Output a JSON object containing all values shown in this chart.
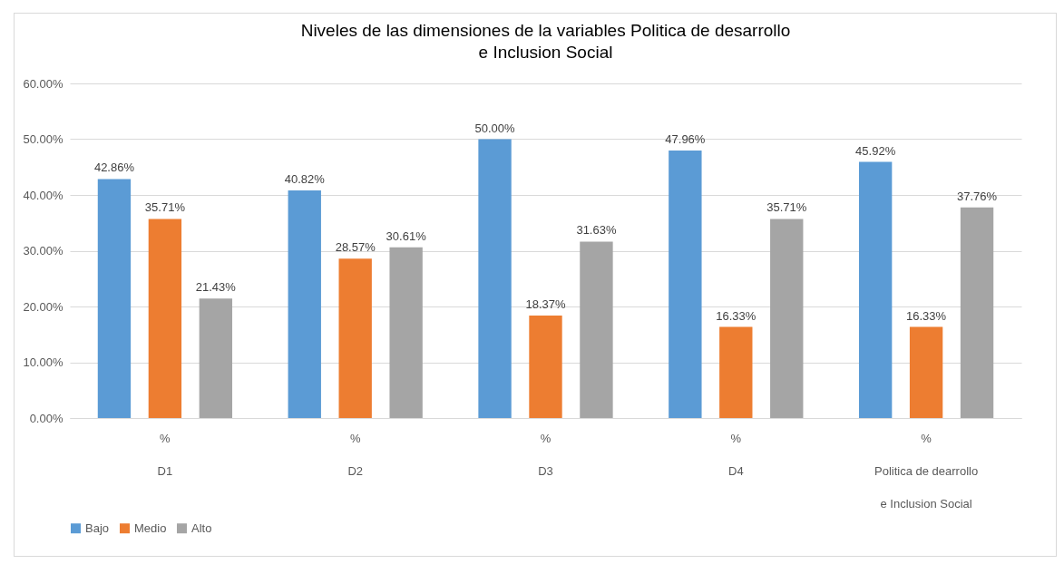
{
  "chart_data": {
    "type": "bar",
    "title": "Niveles de las dimensiones de la variables Politica de desarrollo\ne Inclusion Social",
    "categories": [
      "%\nD1",
      "%\nD2",
      "%\nD3",
      "%\nD4",
      "%\nPolitica de dearrollo\ne Inclusion Social"
    ],
    "series": [
      {
        "name": "Bajo",
        "color": "#5b9bd5",
        "values": [
          42.86,
          40.82,
          50.0,
          47.96,
          45.92
        ],
        "value_labels": [
          "42.86%",
          "40.82%",
          "50.00%",
          "47.96%",
          "45.92%"
        ]
      },
      {
        "name": "Medio",
        "color": "#ed7d31",
        "values": [
          35.71,
          28.57,
          18.37,
          16.33,
          16.33
        ],
        "value_labels": [
          "35.71%",
          "28.57%",
          "18.37%",
          "16.33%",
          "16.33%"
        ]
      },
      {
        "name": "Alto",
        "color": "#a5a5a5",
        "values": [
          21.43,
          30.61,
          31.63,
          35.71,
          37.76
        ],
        "value_labels": [
          "21.43%",
          "30.61%",
          "31.63%",
          "35.71%",
          "37.76%"
        ]
      }
    ],
    "ylim": [
      0,
      60
    ],
    "yticks": [
      {
        "value": 0,
        "label": "0.00%"
      },
      {
        "value": 10,
        "label": "10.00%"
      },
      {
        "value": 20,
        "label": "20.00%"
      },
      {
        "value": 30,
        "label": "30.00%"
      },
      {
        "value": 40,
        "label": "40.00%"
      },
      {
        "value": 50,
        "label": "50.00%"
      },
      {
        "value": 60,
        "label": "60.00%"
      }
    ],
    "grid": "y",
    "legend": "bottom"
  }
}
